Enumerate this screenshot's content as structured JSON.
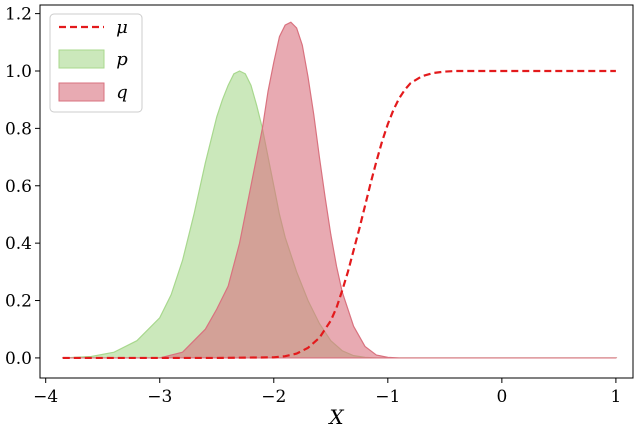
{
  "chart_data": {
    "type": "area",
    "xlabel": "X",
    "ylabel": "",
    "xlim": [
      -4.05,
      1.15
    ],
    "ylim": [
      -0.07,
      1.23
    ],
    "xticks": [
      -4,
      -3,
      -2,
      -1,
      0,
      1
    ],
    "xtick_labels": [
      "−4",
      "−3",
      "−2",
      "−1",
      "0",
      "1"
    ],
    "yticks": [
      0.0,
      0.2,
      0.4,
      0.6,
      0.8,
      1.0,
      1.2
    ],
    "ytick_labels": [
      "0.0",
      "0.2",
      "0.4",
      "0.6",
      "0.8",
      "1.0",
      "1.2"
    ],
    "grid": false,
    "legend_position": "top-left",
    "series": [
      {
        "name": "μ",
        "kind": "line",
        "style": "dashed",
        "color": "#e31a1c",
        "x": [
          -3.85,
          -3.5,
          -3.0,
          -2.5,
          -2.0,
          -1.9,
          -1.8,
          -1.7,
          -1.6,
          -1.5,
          -1.45,
          -1.4,
          -1.35,
          -1.3,
          -1.25,
          -1.2,
          -1.15,
          -1.1,
          -1.05,
          -1.0,
          -0.95,
          -0.9,
          -0.85,
          -0.8,
          -0.7,
          -0.6,
          -0.5,
          -0.4,
          -0.2,
          0.0,
          0.5,
          1.0
        ],
        "y": [
          0.0,
          0.0,
          0.0,
          0.0,
          0.002,
          0.006,
          0.015,
          0.035,
          0.07,
          0.13,
          0.175,
          0.235,
          0.3,
          0.375,
          0.45,
          0.53,
          0.61,
          0.685,
          0.755,
          0.815,
          0.865,
          0.905,
          0.935,
          0.958,
          0.982,
          0.993,
          0.998,
          1.0,
          1.0,
          1.0,
          1.0,
          1.0
        ]
      },
      {
        "name": "p",
        "kind": "area",
        "color": "#a8d88e",
        "x": [
          -3.85,
          -3.6,
          -3.4,
          -3.2,
          -3.0,
          -2.9,
          -2.8,
          -2.7,
          -2.6,
          -2.5,
          -2.45,
          -2.4,
          -2.35,
          -2.3,
          -2.25,
          -2.2,
          -2.15,
          -2.1,
          -2.05,
          -2.0,
          -1.95,
          -1.9,
          -1.8,
          -1.7,
          -1.6,
          -1.5,
          -1.4,
          -1.3,
          -1.2,
          -1.1,
          -1.0,
          1.0
        ],
        "y": [
          0.0,
          0.005,
          0.02,
          0.06,
          0.14,
          0.22,
          0.34,
          0.5,
          0.68,
          0.84,
          0.9,
          0.95,
          0.99,
          1.0,
          0.99,
          0.95,
          0.88,
          0.8,
          0.7,
          0.6,
          0.5,
          0.42,
          0.3,
          0.2,
          0.12,
          0.06,
          0.025,
          0.008,
          0.002,
          0.0,
          0.0,
          0.0
        ]
      },
      {
        "name": "q",
        "kind": "area",
        "color": "#d9727f",
        "x": [
          -3.85,
          -3.0,
          -2.8,
          -2.6,
          -2.5,
          -2.4,
          -2.3,
          -2.2,
          -2.1,
          -2.05,
          -2.0,
          -1.95,
          -1.9,
          -1.85,
          -1.8,
          -1.75,
          -1.7,
          -1.65,
          -1.6,
          -1.55,
          -1.5,
          -1.45,
          -1.4,
          -1.3,
          -1.2,
          -1.1,
          -1.0,
          -0.9,
          -0.8,
          1.0
        ],
        "y": [
          0.0,
          0.0,
          0.02,
          0.1,
          0.17,
          0.25,
          0.4,
          0.6,
          0.8,
          0.93,
          1.03,
          1.12,
          1.16,
          1.17,
          1.15,
          1.09,
          0.98,
          0.85,
          0.7,
          0.56,
          0.43,
          0.32,
          0.23,
          0.11,
          0.04,
          0.01,
          0.002,
          0.0,
          0.0,
          0.0
        ]
      }
    ]
  }
}
